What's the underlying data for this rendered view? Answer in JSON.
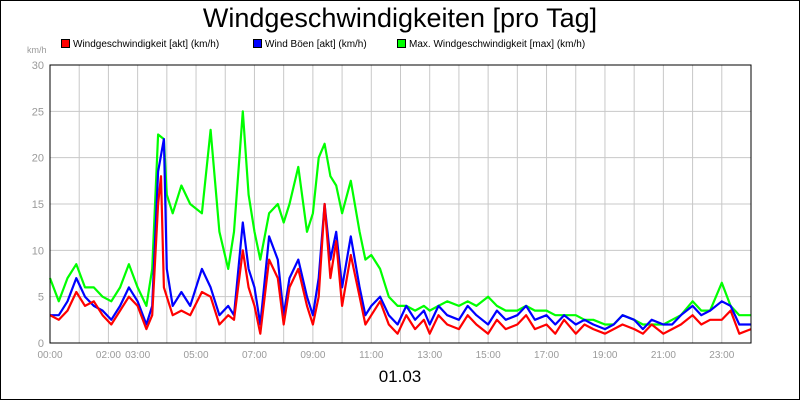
{
  "chart_data": {
    "type": "line",
    "title": "Windgeschwindigkeiten [pro Tag]",
    "unit_label": "km/h",
    "date": "01.03",
    "ylim": [
      0,
      30
    ],
    "yticks": [
      "0",
      "5",
      "10",
      "15",
      "20",
      "25",
      "30"
    ],
    "xlim": [
      0,
      24
    ],
    "xticks": [
      {
        "value": 0,
        "label": "00:00"
      },
      {
        "value": 2,
        "label": "02:00"
      },
      {
        "value": 3,
        "label": "03:00"
      },
      {
        "value": 5,
        "label": "05:00"
      },
      {
        "value": 7,
        "label": "07:00"
      },
      {
        "value": 9,
        "label": "09:00"
      },
      {
        "value": 11,
        "label": "11:00"
      },
      {
        "value": 13,
        "label": "13:00"
      },
      {
        "value": 15,
        "label": "15:00"
      },
      {
        "value": 17,
        "label": "17:00"
      },
      {
        "value": 19,
        "label": "19:00"
      },
      {
        "value": 21,
        "label": "21:00"
      },
      {
        "value": 23,
        "label": "23:00"
      }
    ],
    "grid": true,
    "legend_position": "top",
    "series": [
      {
        "name": "Windgeschwindigkeit [akt] (km/h)",
        "color": "#ff0000",
        "points": [
          [
            0,
            3
          ],
          [
            0.3,
            2.5
          ],
          [
            0.6,
            3.5
          ],
          [
            0.9,
            5.5
          ],
          [
            1.2,
            4
          ],
          [
            1.5,
            4.5
          ],
          [
            1.8,
            3
          ],
          [
            2.1,
            2
          ],
          [
            2.4,
            3.5
          ],
          [
            2.7,
            5
          ],
          [
            3.0,
            4
          ],
          [
            3.3,
            1.5
          ],
          [
            3.5,
            3
          ],
          [
            3.7,
            15
          ],
          [
            3.8,
            18
          ],
          [
            3.9,
            6
          ],
          [
            4.0,
            5
          ],
          [
            4.2,
            3
          ],
          [
            4.5,
            3.5
          ],
          [
            4.8,
            3
          ],
          [
            5.2,
            5.5
          ],
          [
            5.5,
            5
          ],
          [
            5.8,
            2
          ],
          [
            6.1,
            3
          ],
          [
            6.3,
            2.5
          ],
          [
            6.6,
            10
          ],
          [
            6.8,
            6
          ],
          [
            7.0,
            4
          ],
          [
            7.2,
            1
          ],
          [
            7.5,
            9
          ],
          [
            7.8,
            7
          ],
          [
            8.0,
            2
          ],
          [
            8.2,
            6
          ],
          [
            8.5,
            8
          ],
          [
            8.8,
            4
          ],
          [
            9.0,
            2
          ],
          [
            9.2,
            5
          ],
          [
            9.4,
            15
          ],
          [
            9.6,
            7
          ],
          [
            9.8,
            11
          ],
          [
            10.0,
            4
          ],
          [
            10.3,
            9.5
          ],
          [
            10.6,
            5
          ],
          [
            10.8,
            2
          ],
          [
            11.0,
            3
          ],
          [
            11.3,
            4.5
          ],
          [
            11.6,
            2
          ],
          [
            11.9,
            1
          ],
          [
            12.2,
            3
          ],
          [
            12.5,
            1.5
          ],
          [
            12.8,
            2.5
          ],
          [
            13.0,
            1
          ],
          [
            13.3,
            3
          ],
          [
            13.6,
            2
          ],
          [
            14.0,
            1.5
          ],
          [
            14.3,
            3
          ],
          [
            14.6,
            2
          ],
          [
            15.0,
            1
          ],
          [
            15.3,
            2.5
          ],
          [
            15.6,
            1.5
          ],
          [
            16.0,
            2
          ],
          [
            16.3,
            3
          ],
          [
            16.6,
            1.5
          ],
          [
            17.0,
            2
          ],
          [
            17.3,
            1
          ],
          [
            17.6,
            2.5
          ],
          [
            18.0,
            1
          ],
          [
            18.3,
            2
          ],
          [
            18.6,
            1.5
          ],
          [
            19.0,
            1
          ],
          [
            19.3,
            1.5
          ],
          [
            19.6,
            2
          ],
          [
            20.0,
            1.5
          ],
          [
            20.3,
            1
          ],
          [
            20.6,
            2
          ],
          [
            21.0,
            1
          ],
          [
            21.3,
            1.5
          ],
          [
            21.6,
            2
          ],
          [
            22.0,
            3
          ],
          [
            22.3,
            2
          ],
          [
            22.6,
            2.5
          ],
          [
            23.0,
            2.5
          ],
          [
            23.3,
            3.5
          ],
          [
            23.6,
            1
          ],
          [
            24.0,
            1.5
          ]
        ]
      },
      {
        "name": "Wind Böen [akt] (km/h)",
        "color": "#0000ff",
        "points": [
          [
            0,
            3
          ],
          [
            0.3,
            3
          ],
          [
            0.6,
            4.5
          ],
          [
            0.9,
            7
          ],
          [
            1.2,
            5
          ],
          [
            1.5,
            4
          ],
          [
            1.8,
            3.5
          ],
          [
            2.1,
            2.5
          ],
          [
            2.4,
            4
          ],
          [
            2.7,
            6
          ],
          [
            3.0,
            4.5
          ],
          [
            3.3,
            2
          ],
          [
            3.5,
            4
          ],
          [
            3.7,
            18.5
          ],
          [
            3.9,
            22
          ],
          [
            4.0,
            8
          ],
          [
            4.2,
            4
          ],
          [
            4.5,
            5.5
          ],
          [
            4.8,
            4
          ],
          [
            5.2,
            8
          ],
          [
            5.5,
            6
          ],
          [
            5.8,
            3
          ],
          [
            6.1,
            4
          ],
          [
            6.3,
            3
          ],
          [
            6.6,
            13
          ],
          [
            6.8,
            8
          ],
          [
            7.0,
            6
          ],
          [
            7.2,
            2
          ],
          [
            7.5,
            11.5
          ],
          [
            7.8,
            9
          ],
          [
            8.0,
            3
          ],
          [
            8.2,
            7
          ],
          [
            8.5,
            9
          ],
          [
            8.8,
            5
          ],
          [
            9.0,
            3
          ],
          [
            9.2,
            7
          ],
          [
            9.4,
            15
          ],
          [
            9.6,
            9
          ],
          [
            9.8,
            12
          ],
          [
            10.0,
            6
          ],
          [
            10.3,
            11.5
          ],
          [
            10.6,
            6
          ],
          [
            10.8,
            3
          ],
          [
            11.0,
            4
          ],
          [
            11.3,
            5
          ],
          [
            11.6,
            3
          ],
          [
            11.9,
            2
          ],
          [
            12.2,
            4
          ],
          [
            12.5,
            2.5
          ],
          [
            12.8,
            3.5
          ],
          [
            13.0,
            2
          ],
          [
            13.3,
            4
          ],
          [
            13.6,
            3
          ],
          [
            14.0,
            2.5
          ],
          [
            14.3,
            4
          ],
          [
            14.6,
            3
          ],
          [
            15.0,
            2
          ],
          [
            15.3,
            3.5
          ],
          [
            15.6,
            2.5
          ],
          [
            16.0,
            3
          ],
          [
            16.3,
            4
          ],
          [
            16.6,
            2.5
          ],
          [
            17.0,
            3
          ],
          [
            17.3,
            2
          ],
          [
            17.6,
            3
          ],
          [
            18.0,
            2
          ],
          [
            18.3,
            2.5
          ],
          [
            18.6,
            2
          ],
          [
            19.0,
            1.5
          ],
          [
            19.3,
            2
          ],
          [
            19.6,
            3
          ],
          [
            20.0,
            2.5
          ],
          [
            20.3,
            1.5
          ],
          [
            20.6,
            2.5
          ],
          [
            21.0,
            2
          ],
          [
            21.3,
            2
          ],
          [
            21.6,
            3
          ],
          [
            22.0,
            4
          ],
          [
            22.3,
            3
          ],
          [
            22.6,
            3.5
          ],
          [
            23.0,
            4.5
          ],
          [
            23.3,
            4
          ],
          [
            23.6,
            2
          ],
          [
            24.0,
            2
          ]
        ]
      },
      {
        "name": "Max. Windgeschwindigkeit [max] (km/h)",
        "color": "#00ff00",
        "points": [
          [
            0,
            7
          ],
          [
            0.3,
            4.5
          ],
          [
            0.6,
            7
          ],
          [
            0.9,
            8.5
          ],
          [
            1.2,
            6
          ],
          [
            1.5,
            6
          ],
          [
            1.8,
            5
          ],
          [
            2.1,
            4.5
          ],
          [
            2.4,
            6
          ],
          [
            2.7,
            8.5
          ],
          [
            3.0,
            6
          ],
          [
            3.3,
            4
          ],
          [
            3.5,
            8
          ],
          [
            3.7,
            22.5
          ],
          [
            3.9,
            22
          ],
          [
            4.0,
            16
          ],
          [
            4.2,
            14
          ],
          [
            4.5,
            17
          ],
          [
            4.8,
            15
          ],
          [
            5.2,
            14
          ],
          [
            5.5,
            23
          ],
          [
            5.8,
            12
          ],
          [
            6.1,
            8
          ],
          [
            6.3,
            12
          ],
          [
            6.6,
            25
          ],
          [
            6.8,
            16
          ],
          [
            7.0,
            12
          ],
          [
            7.2,
            9
          ],
          [
            7.5,
            14
          ],
          [
            7.8,
            15
          ],
          [
            8.0,
            13
          ],
          [
            8.2,
            15
          ],
          [
            8.5,
            19
          ],
          [
            8.8,
            12
          ],
          [
            9.0,
            14
          ],
          [
            9.2,
            20
          ],
          [
            9.4,
            21.5
          ],
          [
            9.6,
            18
          ],
          [
            9.8,
            17
          ],
          [
            10.0,
            14
          ],
          [
            10.3,
            17.5
          ],
          [
            10.6,
            12
          ],
          [
            10.8,
            9
          ],
          [
            11.0,
            9.5
          ],
          [
            11.3,
            8
          ],
          [
            11.6,
            5
          ],
          [
            11.9,
            4
          ],
          [
            12.2,
            4
          ],
          [
            12.5,
            3.5
          ],
          [
            12.8,
            4
          ],
          [
            13.0,
            3.5
          ],
          [
            13.3,
            4
          ],
          [
            13.6,
            4.5
          ],
          [
            14.0,
            4
          ],
          [
            14.3,
            4.5
          ],
          [
            14.6,
            4
          ],
          [
            15.0,
            5
          ],
          [
            15.3,
            4
          ],
          [
            15.6,
            3.5
          ],
          [
            16.0,
            3.5
          ],
          [
            16.3,
            4
          ],
          [
            16.6,
            3.5
          ],
          [
            17.0,
            3.5
          ],
          [
            17.3,
            3
          ],
          [
            17.6,
            3
          ],
          [
            18.0,
            3
          ],
          [
            18.3,
            2.5
          ],
          [
            18.6,
            2.5
          ],
          [
            19.0,
            2
          ],
          [
            19.3,
            2
          ],
          [
            19.6,
            3
          ],
          [
            20.0,
            2.5
          ],
          [
            20.3,
            2
          ],
          [
            20.6,
            2
          ],
          [
            21.0,
            2
          ],
          [
            21.3,
            2.5
          ],
          [
            21.6,
            3
          ],
          [
            22.0,
            4.5
          ],
          [
            22.3,
            3.5
          ],
          [
            22.6,
            3.5
          ],
          [
            23.0,
            6.5
          ],
          [
            23.3,
            4
          ],
          [
            23.6,
            3
          ],
          [
            24.0,
            3
          ]
        ]
      }
    ]
  }
}
